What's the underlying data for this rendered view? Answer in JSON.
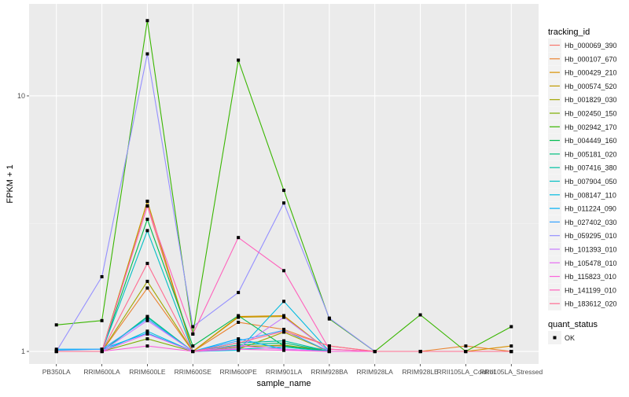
{
  "chart_data": {
    "type": "line",
    "xlabel": "sample_name",
    "ylabel": "FPKM + 1",
    "y_scale": "log10",
    "ylim": [
      0.893,
      22.9
    ],
    "y_ticks": [
      {
        "value": 1,
        "label": "1"
      },
      {
        "value": 10,
        "label": "10"
      }
    ],
    "grid": true,
    "background": "#EBEBEB",
    "categories": [
      "PB350LA",
      "RRIM600LA",
      "RRIM600LE",
      "RRIM600SE",
      "RRIM600PE",
      "RRIM901LA",
      "RRIM928BA",
      "RRIM928LA",
      "RRIM928LE",
      "RRII105LA_Control",
      "RRII105LA_Stressed"
    ],
    "legend": {
      "title": "tracking_id",
      "placement": "right"
    },
    "shape_legend": {
      "title": "quant_status",
      "entries": [
        "OK"
      ]
    },
    "series": [
      {
        "name": "Hb_000069_390",
        "color": "#F8766D",
        "values": [
          1.0,
          1.0,
          3.71,
          1.0,
          1.05,
          1.05,
          1.02,
          1.0,
          1.0,
          1.0,
          1.0
        ]
      },
      {
        "name": "Hb_000107_670",
        "color": "#EA8331",
        "values": [
          1.0,
          1.0,
          1.77,
          1.0,
          1.3,
          1.22,
          1.05,
          1.0,
          1.0,
          1.05,
          1.0
        ]
      },
      {
        "name": "Hb_000429_210",
        "color": "#D89000",
        "values": [
          1.0,
          1.0,
          3.87,
          1.0,
          1.37,
          1.38,
          1.0,
          1.0,
          1.0,
          1.0,
          1.05
        ]
      },
      {
        "name": "Hb_000574_520",
        "color": "#C09B00",
        "values": [
          1.0,
          1.0,
          3.87,
          1.0,
          1.36,
          1.37,
          1.0,
          1.0,
          1.0,
          1.0,
          1.0
        ]
      },
      {
        "name": "Hb_001829_030",
        "color": "#A3A500",
        "values": [
          1.0,
          1.0,
          1.88,
          1.0,
          1.02,
          1.19,
          1.0,
          1.0,
          1.0,
          1.0,
          1.0
        ]
      },
      {
        "name": "Hb_002450_150",
        "color": "#7CAE00",
        "values": [
          1.0,
          1.0,
          1.12,
          1.0,
          1.04,
          1.06,
          1.0,
          1.0,
          1.0,
          1.0,
          1.0
        ]
      },
      {
        "name": "Hb_002942_170",
        "color": "#39B600",
        "values": [
          1.27,
          1.32,
          19.7,
          1.17,
          13.8,
          4.27,
          1.34,
          1.0,
          1.39,
          1.0,
          1.25
        ]
      },
      {
        "name": "Hb_004449_160",
        "color": "#00BB4E",
        "values": [
          1.0,
          1.0,
          3.29,
          1.05,
          1.38,
          1.05,
          1.0,
          1.0,
          1.0,
          1.0,
          1.0
        ]
      },
      {
        "name": "Hb_005181_020",
        "color": "#00BF7D",
        "values": [
          1.0,
          1.0,
          1.37,
          1.0,
          1.06,
          1.08,
          1.0,
          1.0,
          1.0,
          1.0,
          1.0
        ]
      },
      {
        "name": "Hb_007416_380",
        "color": "#00C1A3",
        "values": [
          1.0,
          1.0,
          1.36,
          1.0,
          1.08,
          1.1,
          1.0,
          1.0,
          1.0,
          1.0,
          1.0
        ]
      },
      {
        "name": "Hb_007904_050",
        "color": "#00BFC4",
        "values": [
          1.0,
          1.0,
          2.97,
          1.0,
          1.02,
          1.04,
          1.0,
          1.0,
          1.0,
          1.0,
          1.0
        ]
      },
      {
        "name": "Hb_008147_110",
        "color": "#00BAE0",
        "values": [
          1.0,
          1.0,
          1.2,
          1.0,
          1.01,
          1.57,
          1.0,
          1.0,
          1.0,
          1.0,
          1.0
        ]
      },
      {
        "name": "Hb_011224_090",
        "color": "#00B0F6",
        "values": [
          1.02,
          1.02,
          1.18,
          1.0,
          1.12,
          1.02,
          1.0,
          1.0,
          1.0,
          1.0,
          1.0
        ]
      },
      {
        "name": "Hb_027402_030",
        "color": "#35A2FF",
        "values": [
          1.01,
          1.02,
          1.34,
          1.0,
          1.1,
          1.21,
          1.0,
          1.0,
          1.0,
          1.0,
          1.0
        ]
      },
      {
        "name": "Hb_059295_010",
        "color": "#9590FF",
        "values": [
          1.0,
          1.96,
          14.6,
          1.25,
          1.7,
          3.81,
          1.35,
          1.0,
          1.0,
          1.0,
          1.0
        ]
      },
      {
        "name": "Hb_101393_010",
        "color": "#C77CFF",
        "values": [
          1.0,
          1.0,
          1.32,
          1.0,
          1.03,
          1.36,
          1.0,
          1.0,
          1.0,
          1.0,
          1.0
        ]
      },
      {
        "name": "Hb_105478_010",
        "color": "#E76BF3",
        "values": [
          1.0,
          1.0,
          1.17,
          1.0,
          1.05,
          1.02,
          1.0,
          1.0,
          1.0,
          1.0,
          1.0
        ]
      },
      {
        "name": "Hb_115823_010",
        "color": "#FA62DB",
        "values": [
          1.0,
          1.0,
          1.05,
          1.0,
          1.02,
          1.01,
          1.0,
          1.0,
          1.0,
          1.0,
          1.0
        ]
      },
      {
        "name": "Hb_141199_010",
        "color": "#FF62BC",
        "values": [
          1.0,
          1.0,
          3.71,
          1.17,
          2.79,
          2.07,
          1.02,
          1.0,
          1.0,
          1.0,
          1.0
        ]
      },
      {
        "name": "Hb_183612_020",
        "color": "#FF6C91",
        "values": [
          1.0,
          1.0,
          2.21,
          1.0,
          1.08,
          1.2,
          1.05,
          1.0,
          1.0,
          1.0,
          1.0
        ]
      }
    ]
  }
}
